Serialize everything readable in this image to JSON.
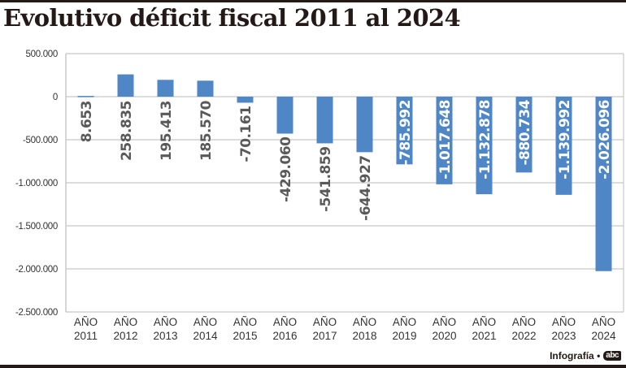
{
  "header": {
    "title": "Evolutivo déficit fiscal 2011 al 2024"
  },
  "footer": {
    "credit": "Infografía •",
    "logo_text": "abc"
  },
  "colors": {
    "bar": "#4f86c6",
    "grid": "#c8c8c8",
    "axis_text": "#333333",
    "label_outside": "#595959",
    "label_inside": "#ffffff",
    "title": "#231a17"
  },
  "chart_data": {
    "type": "bar",
    "title": "Evolutivo déficit fiscal 2011 al 2024",
    "xlabel": "",
    "ylabel": "",
    "categories": [
      "AÑO 2011",
      "AÑO 2012",
      "AÑO 2013",
      "AÑO 2014",
      "AÑO 2015",
      "AÑO 2016",
      "AÑO 2017",
      "AÑO 2018",
      "AÑO 2019",
      "AÑO 2020",
      "AÑO 2021",
      "AÑO 2022",
      "AÑO 2023",
      "AÑO 2024"
    ],
    "category_lines": [
      [
        "AÑO",
        "2011"
      ],
      [
        "AÑO",
        "2012"
      ],
      [
        "AÑO",
        "2013"
      ],
      [
        "AÑO",
        "2014"
      ],
      [
        "AÑO",
        "2015"
      ],
      [
        "AÑO",
        "2016"
      ],
      [
        "AÑO",
        "2017"
      ],
      [
        "AÑO",
        "2018"
      ],
      [
        "AÑO",
        "2019"
      ],
      [
        "AÑO",
        "2020"
      ],
      [
        "AÑO",
        "2021"
      ],
      [
        "AÑO",
        "2022"
      ],
      [
        "AÑO",
        "2023"
      ],
      [
        "AÑO",
        "2024"
      ]
    ],
    "values": [
      8653,
      258835,
      195413,
      185570,
      -70161,
      -429060,
      -541859,
      -644927,
      -785992,
      -1017648,
      -1132878,
      -880734,
      -1139992,
      -2026096
    ],
    "data_labels": [
      "8.653",
      "258.835",
      "195.413",
      "185.570",
      "-70.161",
      "-429.060",
      "-541.859",
      "-644.927",
      "-785.992",
      "-1.017.648",
      "-1.132.878",
      "-880.734",
      "-1.139.992",
      "-2.026.096"
    ],
    "label_inside_bar": [
      false,
      false,
      false,
      false,
      false,
      false,
      false,
      false,
      true,
      true,
      true,
      true,
      true,
      true
    ],
    "ylim": [
      -2500000,
      500000
    ],
    "yticks": [
      500000,
      0,
      -500000,
      -1000000,
      -1500000,
      -2000000,
      -2500000
    ],
    "ytick_labels": [
      "500.000",
      "0",
      "-500.000",
      "-1.000.000",
      "-1.500.000",
      "-2.000.000",
      "-2.500.000"
    ],
    "grid": true,
    "legend": "none"
  }
}
